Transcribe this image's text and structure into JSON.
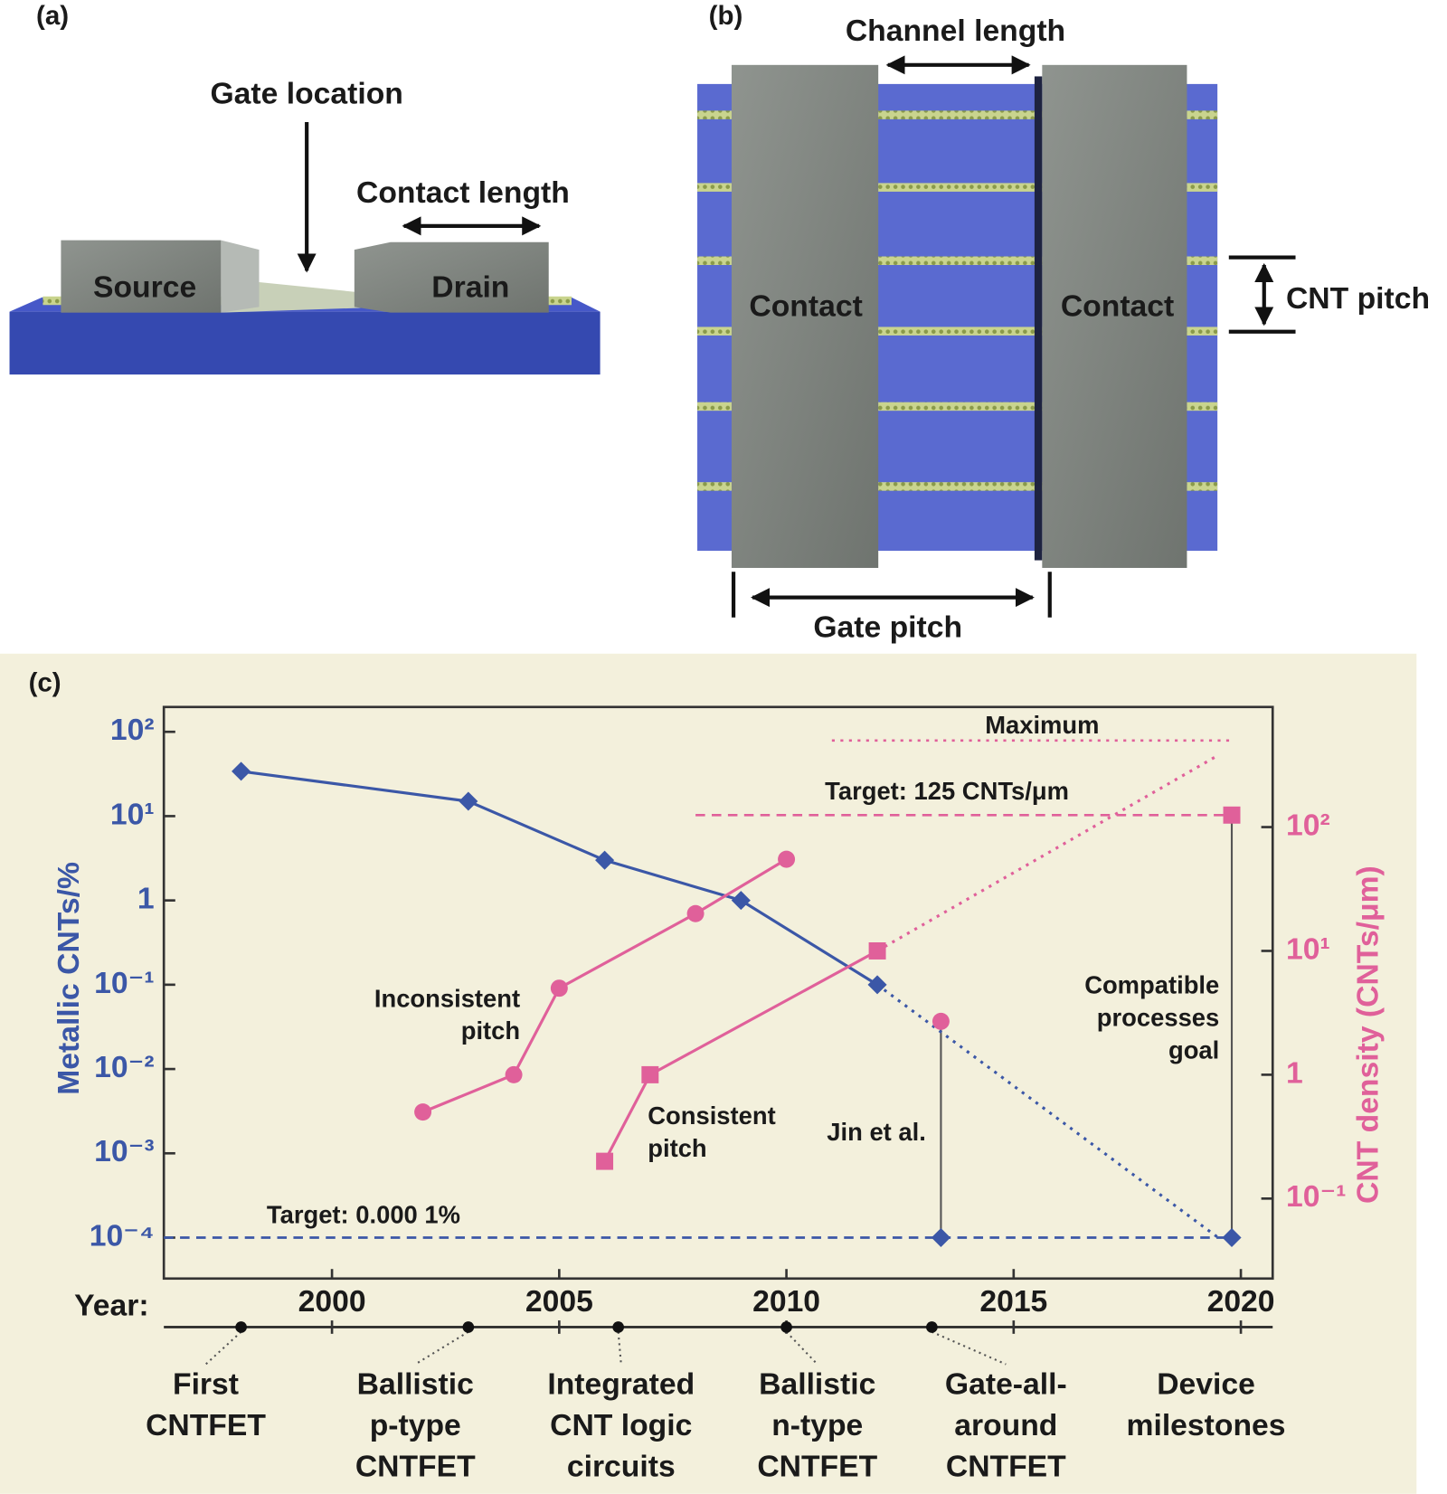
{
  "panel_a": {
    "label": "(a)",
    "gate_location": "Gate location",
    "contact_length": "Contact length",
    "source": "Source",
    "drain": "Drain"
  },
  "panel_b": {
    "label": "(b)",
    "channel_length": "Channel length",
    "contact_left": "Contact",
    "contact_right": "Contact",
    "cnt_pitch": "CNT pitch",
    "gate_pitch": "Gate pitch"
  },
  "chart_data": {
    "type": "line",
    "panel_label": "(c)",
    "y_label": "Metallic CNTs/%",
    "y2_label": "CNT density (CNTs/μm)",
    "x_label": "Year:",
    "y_color": "#3b57a7",
    "y2_color": "#e0609a",
    "yscale": "log",
    "y2scale": "log",
    "xlim": [
      1996.3,
      2020.7
    ],
    "xticks": [
      2000,
      2005,
      2010,
      2015,
      2020
    ],
    "ylim": [
      3.27e-05,
      197
    ],
    "yticks": [
      {
        "value": 100,
        "label": "10²"
      },
      {
        "value": 10,
        "label": "10¹"
      },
      1,
      {
        "value": 0.1,
        "label": "10⁻¹"
      },
      {
        "value": 0.01,
        "label": "10⁻²"
      },
      {
        "value": 0.001,
        "label": "10⁻³"
      },
      {
        "value": 0.0001,
        "label": "10⁻⁴"
      }
    ],
    "y2lim": [
      0.0226,
      933
    ],
    "y2ticks": [
      {
        "value": 100,
        "label": "10²"
      },
      {
        "value": 10,
        "label": "10¹"
      },
      1,
      {
        "value": 0.1,
        "label": "10⁻¹"
      }
    ],
    "series": [
      {
        "color": "#3b57a7",
        "marker": "diamond",
        "line_style": "solid",
        "axis": "y",
        "x": [
          1998,
          2003,
          2006,
          2009,
          2012
        ],
        "values": [
          34,
          15,
          3,
          1,
          0.1
        ]
      },
      {
        "color": "#3b57a7",
        "marker": "none",
        "line_style": "dotted",
        "axis": "y",
        "x": [
          2012,
          2019.5
        ],
        "values": [
          0.1,
          0.0001
        ]
      },
      {
        "name": [
          "Inconsistent",
          "pitch"
        ],
        "color": "#e0609a",
        "marker": "circle",
        "line_style": "solid",
        "axis": "y2",
        "x": [
          2002,
          2004,
          2005,
          2008,
          2010
        ],
        "values": [
          0.5,
          1,
          5,
          20,
          55
        ]
      },
      {
        "name": [
          "Consistent",
          "pitch"
        ],
        "color": "#e0609a",
        "marker": "square",
        "line_style": "solid",
        "axis": "y2",
        "x": [
          2006,
          2007,
          2012
        ],
        "values": [
          0.2,
          1,
          10
        ]
      },
      {
        "color": "#e0609a",
        "marker": "none",
        "line_style": "dotted",
        "axis": "y2",
        "x": [
          2012,
          2019.5
        ],
        "values": [
          10,
          380
        ]
      },
      {
        "name": "Jin et al.",
        "color": "#e0609a",
        "marker": "circle",
        "line_style": "solid",
        "axis": "y2",
        "stem_color": "#555555",
        "x": [
          2013.4
        ],
        "values": [
          2.7
        ]
      },
      {
        "color": "#3b57a7",
        "marker": "diamond",
        "line_style": "solid",
        "axis": "y",
        "x": [
          2013.4
        ],
        "values": [
          0.0001
        ]
      },
      {
        "name": [
          "Compatible",
          "processes",
          "goal"
        ],
        "color": "#e0609a",
        "marker": "square",
        "line_style": "solid",
        "axis": "y2",
        "stem_color": "#555555",
        "x": [
          2019.8
        ],
        "values": [
          125
        ]
      },
      {
        "color": "#3b57a7",
        "marker": "diamond",
        "line_style": "solid",
        "axis": "y",
        "x": [
          2019.8
        ],
        "values": [
          0.0001
        ]
      }
    ],
    "reference_lines": [
      {
        "label": "Maximum",
        "axis": "y2",
        "value": 500,
        "x": [
          2011,
          2019.8
        ],
        "color": "#e0609a",
        "line_style": "dotted"
      },
      {
        "label": "Target: 125 CNTs/μm",
        "axis": "y2",
        "value": 125,
        "x": [
          2008,
          2019.8
        ],
        "color": "#e0609a",
        "line_style": "dashed"
      },
      {
        "label": "Target: 0.000 1%",
        "axis": "y",
        "value": 0.0001,
        "x": [
          1996.3,
          2019.8
        ],
        "color": "#3b57a7",
        "line_style": "dashed"
      }
    ],
    "timeline_title": [
      "Device",
      "milestones"
    ],
    "milestones": [
      {
        "year": 1998,
        "label": [
          "First",
          "CNTFET"
        ]
      },
      {
        "year": 2003,
        "label": [
          "Ballistic",
          "p-type",
          "CNTFET"
        ]
      },
      {
        "year": 2006.3,
        "label": [
          "Integrated",
          "CNT logic",
          "circuits"
        ]
      },
      {
        "year": 2010,
        "label": [
          "Ballistic",
          "n-type",
          "CNTFET"
        ]
      },
      {
        "year": 2013.2,
        "label": [
          "Gate-all-",
          "around",
          "CNTFET"
        ]
      }
    ]
  }
}
